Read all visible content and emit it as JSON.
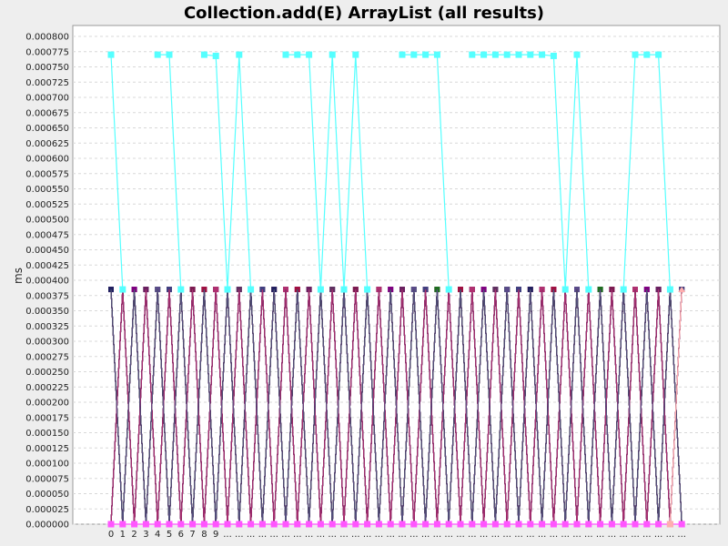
{
  "chart_data": {
    "type": "line",
    "title": "Collection.add(E) ArrayList (all results)",
    "xlabel": "",
    "ylabel": "ms",
    "ylim": [
      0,
      0.0008
    ],
    "y_ticks": [
      "0.000000",
      "0.000025",
      "0.000050",
      "0.000075",
      "0.000100",
      "0.000125",
      "0.000150",
      "0.000175",
      "0.000200",
      "0.000225",
      "0.000250",
      "0.000275",
      "0.000300",
      "0.000325",
      "0.000350",
      "0.000375",
      "0.000400",
      "0.000425",
      "0.000450",
      "0.000475",
      "0.000500",
      "0.000525",
      "0.000550",
      "0.000575",
      "0.000600",
      "0.000625",
      "0.000650",
      "0.000675",
      "0.000700",
      "0.000725",
      "0.000750",
      "0.000775",
      "0.000800"
    ],
    "categories": [
      "0",
      "1",
      "2",
      "3",
      "4",
      "5",
      "6",
      "7",
      "8",
      "9",
      "...",
      "...",
      "...",
      "...",
      "...",
      "...",
      "...",
      "...",
      "...",
      "...",
      "...",
      "...",
      "...",
      "...",
      "...",
      "...",
      "...",
      "...",
      "...",
      "...",
      "...",
      "...",
      "...",
      "...",
      "...",
      "...",
      "...",
      "...",
      "...",
      "...",
      "...",
      "...",
      "...",
      "...",
      "...",
      "...",
      "...",
      "...",
      "...",
      "..."
    ],
    "grid": true,
    "legend": "none",
    "series": [
      {
        "color": "#55ffff",
        "values": [
          0.00077,
          0.000385,
          null,
          null,
          0.00077,
          0.00077,
          0.000385,
          null,
          0.00077,
          0.000768,
          0.000385,
          0.00077,
          0.000385,
          null,
          null,
          0.00077,
          0.00077,
          0.00077,
          0.000385,
          0.00077,
          0.000385,
          0.00077,
          0.000385,
          null,
          null,
          0.00077,
          0.00077,
          0.00077,
          0.00077,
          0.000385,
          null,
          0.00077,
          0.00077,
          0.00077,
          0.00077,
          0.00077,
          0.00077,
          0.00077,
          0.000768,
          0.000385,
          0.00077,
          0.000385,
          null,
          null,
          0.000385,
          0.00077,
          0.00077,
          0.00077,
          0.000385,
          null
        ]
      },
      {
        "color": "#ff55ff",
        "values": [
          0,
          0,
          0,
          0,
          0,
          0,
          0,
          0,
          0,
          0,
          0,
          0,
          0,
          0,
          0,
          0,
          0,
          0,
          0,
          0,
          0,
          0,
          0,
          0,
          0,
          0,
          0,
          0,
          0,
          0,
          0,
          0,
          0,
          0,
          0,
          0,
          0,
          0,
          0,
          0,
          0,
          0,
          0,
          0,
          0,
          0,
          0,
          0,
          0,
          0
        ]
      },
      {
        "color": "#ffafaf",
        "values": [
          null,
          null,
          null,
          null,
          null,
          null,
          null,
          null,
          null,
          null,
          null,
          null,
          null,
          null,
          null,
          null,
          null,
          null,
          null,
          null,
          null,
          null,
          null,
          null,
          null,
          null,
          null,
          null,
          null,
          null,
          null,
          null,
          null,
          null,
          null,
          null,
          null,
          null,
          null,
          null,
          null,
          null,
          null,
          null,
          null,
          null,
          null,
          null,
          0,
          0.000385
        ]
      }
    ],
    "alternating_series_colors": [
      "#800080",
      "#404080",
      "#a01040",
      "#603060",
      "#202060",
      "#6a2060",
      "#1f6f1f",
      "#b03070",
      "#5a4a8a",
      "#7a1a50"
    ],
    "alternating_high": 0.000385,
    "alternating_low": 0
  }
}
